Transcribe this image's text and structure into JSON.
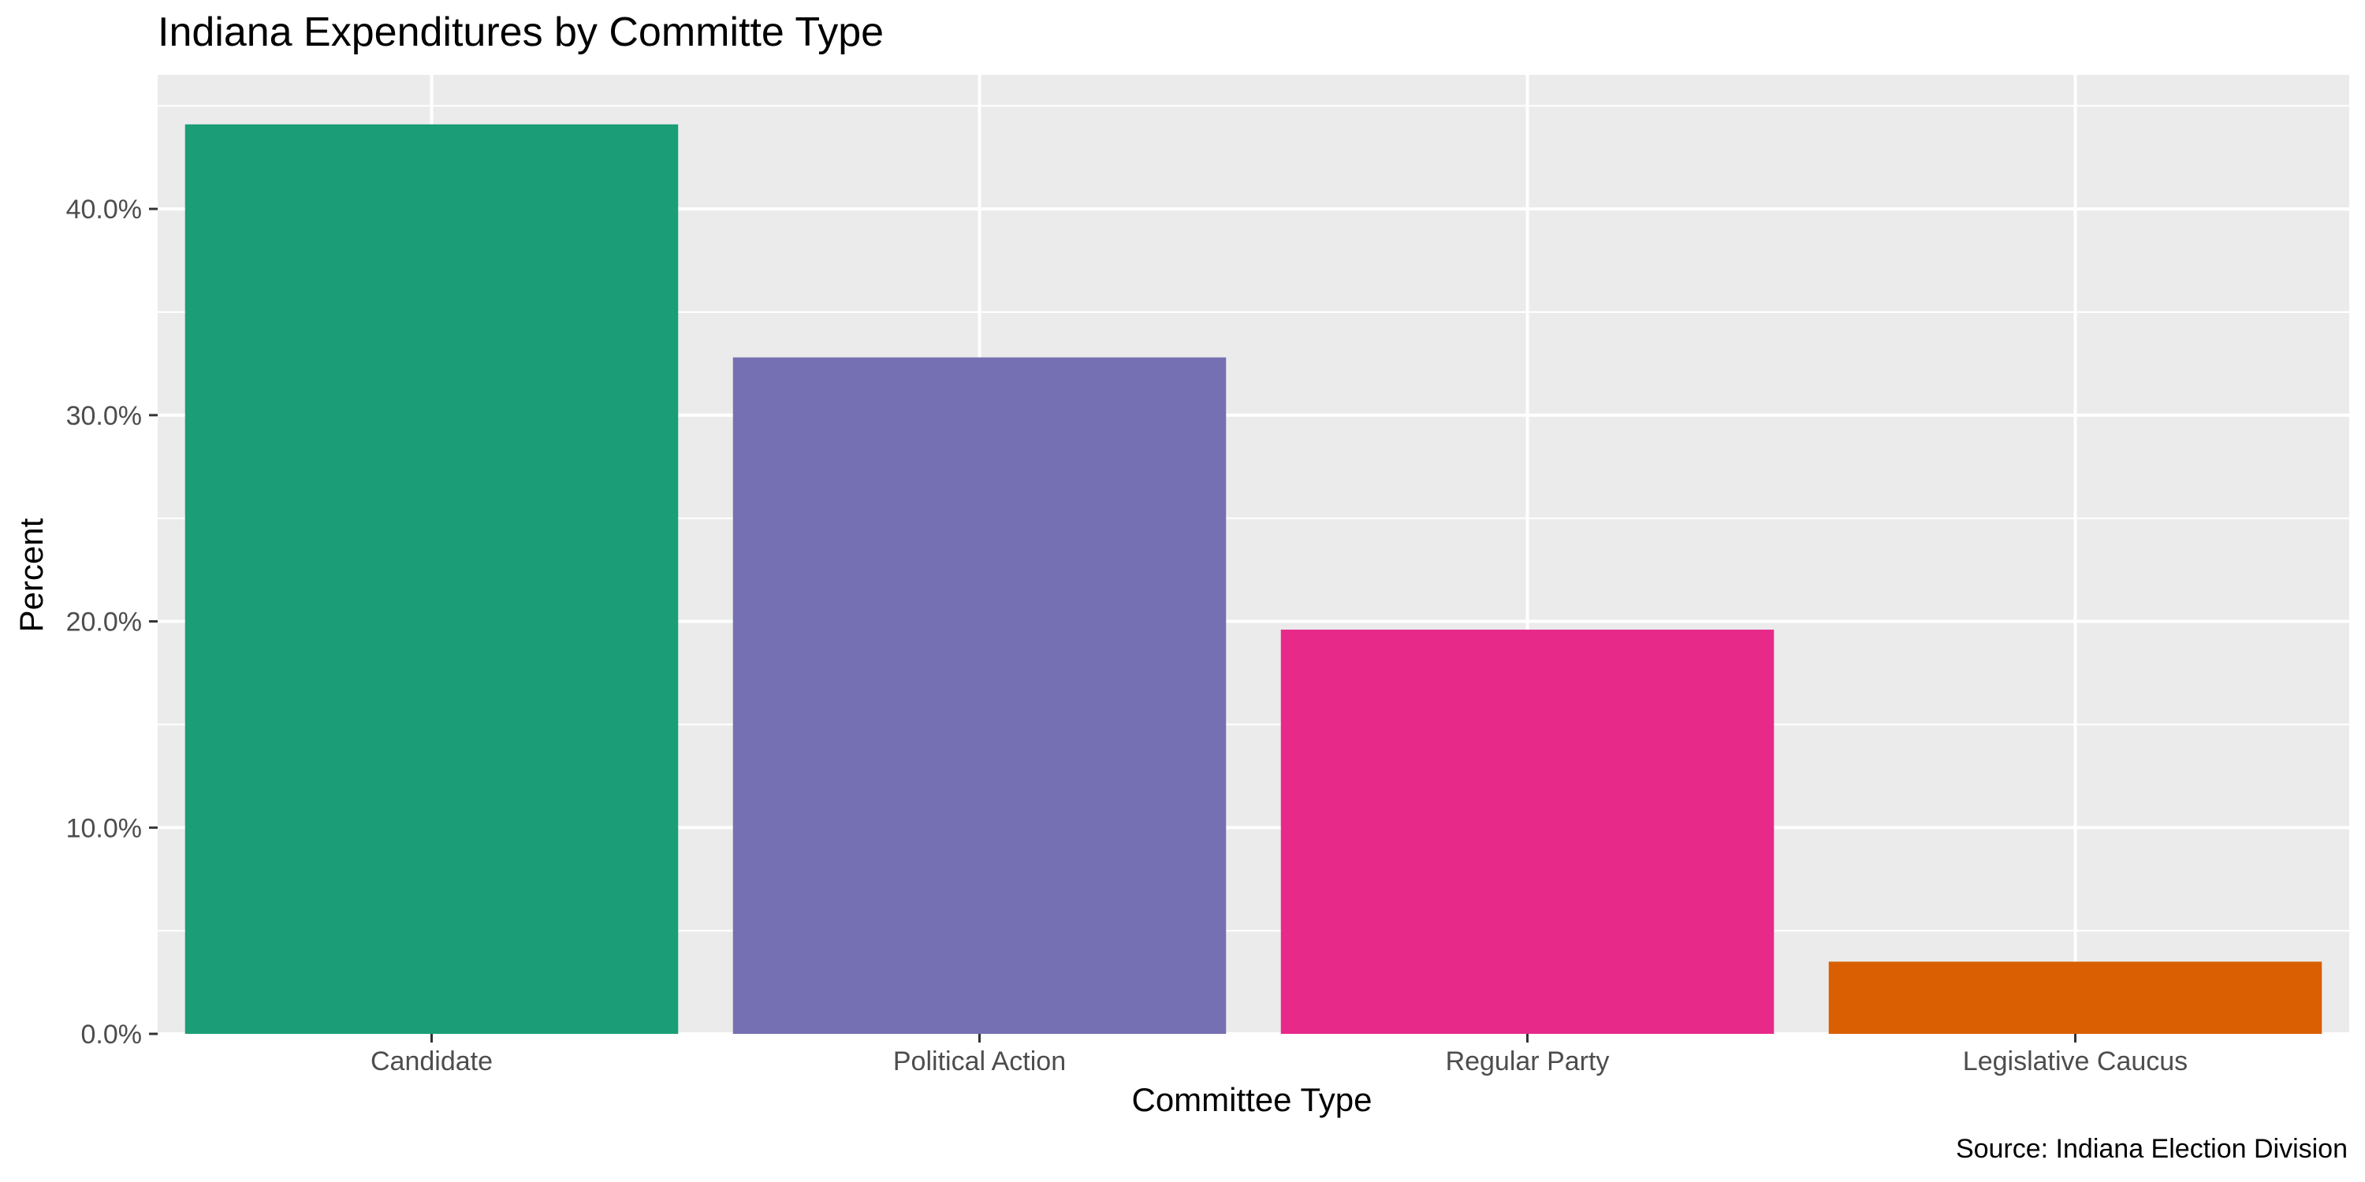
{
  "chart_data": {
    "type": "bar",
    "title": "Indiana Expenditures by Committe Type",
    "xlabel": "Committee Type",
    "ylabel": "Percent",
    "caption": "Source: Indiana Election Division",
    "categories": [
      "Candidate",
      "Political Action",
      "Regular Party",
      "Legislative Caucus"
    ],
    "values": [
      44.1,
      32.8,
      19.6,
      3.5
    ],
    "value_format": "percent",
    "ylim": [
      0,
      46.5
    ],
    "y_ticks": [
      0,
      10,
      20,
      30,
      40
    ],
    "y_tick_labels": [
      "0.0%",
      "10.0%",
      "20.0%",
      "30.0%",
      "40.0%"
    ],
    "bar_colors": [
      "#1b9e77",
      "#7570b3",
      "#e7298a",
      "#d95f02"
    ],
    "panel_background": "#ebebeb",
    "grid": true,
    "legend": "none"
  }
}
